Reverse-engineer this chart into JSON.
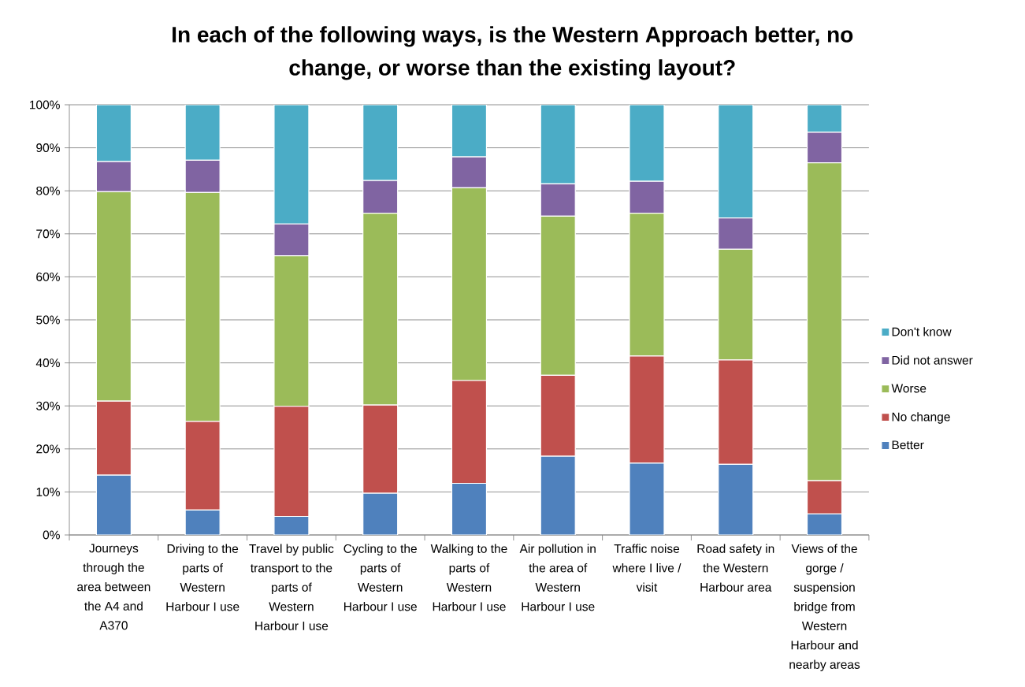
{
  "chart_data": {
    "type": "bar",
    "title": "In each of the following ways, is the Western Approach better, no change, or worse than the existing layout?",
    "categories": [
      "Journeys through the area between the A4 and A370",
      "Driving to the parts of Western Harbour I use",
      "Travel by public transport to the parts of Western Harbour I use",
      "Cycling to the parts of Western Harbour I use",
      "Walking to the parts of Western Harbour I use",
      "Air pollution in the area of Western Harbour I use",
      "Traffic noise where I live / visit",
      "Road safety in the Western Harbour area",
      "Views of the gorge / suspension bridge from Western Harbour and nearby areas"
    ],
    "series": [
      {
        "name": "Better",
        "color": "#4f81bd",
        "values": [
          13.9,
          5.8,
          4.3,
          9.7,
          12.0,
          18.3,
          16.7,
          16.4,
          4.9
        ]
      },
      {
        "name": "No change",
        "color": "#c0504d",
        "values": [
          17.2,
          20.6,
          25.6,
          20.5,
          23.9,
          18.8,
          24.9,
          24.3,
          7.7
        ]
      },
      {
        "name": "Worse",
        "color": "#9bbb59",
        "values": [
          48.7,
          53.2,
          35.0,
          44.6,
          44.8,
          37.0,
          33.2,
          25.7,
          73.9
        ]
      },
      {
        "name": "Did not answer",
        "color": "#8064a2",
        "values": [
          7.0,
          7.5,
          7.4,
          7.6,
          7.2,
          7.5,
          7.4,
          7.3,
          7.1
        ]
      },
      {
        "name": "Don't know",
        "color": "#4bacc6",
        "values": [
          13.2,
          12.9,
          27.7,
          17.6,
          12.1,
          18.4,
          17.8,
          26.3,
          6.4
        ]
      }
    ],
    "stacked": true,
    "ylim": [
      0,
      100
    ],
    "yticks": [
      {
        "value": 0,
        "label": "0%"
      },
      {
        "value": 10,
        "label": "10%"
      },
      {
        "value": 20,
        "label": "20%"
      },
      {
        "value": 30,
        "label": "30%"
      },
      {
        "value": 40,
        "label": "40%"
      },
      {
        "value": 50,
        "label": "50%"
      },
      {
        "value": 60,
        "label": "60%"
      },
      {
        "value": 70,
        "label": "70%"
      },
      {
        "value": 80,
        "label": "80%"
      },
      {
        "value": 90,
        "label": "90%"
      },
      {
        "value": 100,
        "label": "100%"
      }
    ],
    "grid": "y",
    "legend": "right"
  }
}
